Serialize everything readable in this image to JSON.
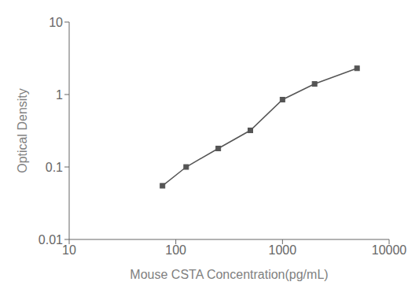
{
  "chart_data": {
    "type": "line",
    "x": [
      75,
      125,
      250,
      500,
      1000,
      2000,
      5000
    ],
    "values": [
      0.055,
      0.1,
      0.18,
      0.32,
      0.85,
      1.4,
      2.3
    ],
    "xlabel": "Mouse CSTA Concentration(pg/mL)",
    "ylabel": "Optical Density",
    "xlim": [
      10,
      10000
    ],
    "ylim": [
      0.01,
      10
    ],
    "xticks": [
      10,
      100,
      1000,
      10000
    ],
    "yticks": [
      0.01,
      0.1,
      1,
      10
    ],
    "log": true,
    "color": "#555555",
    "marker": "square",
    "grid": false
  }
}
